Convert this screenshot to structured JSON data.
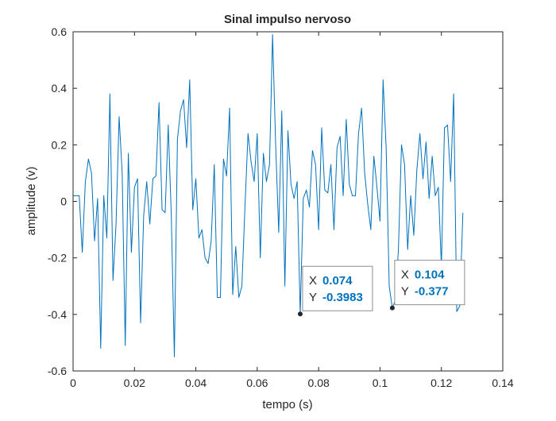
{
  "chart_data": {
    "type": "line",
    "title": "Sinal impulso nervoso",
    "xlabel": "tempo (s)",
    "ylabel": "amplitude (v)",
    "xlim": [
      0,
      0.14
    ],
    "ylim": [
      -0.6,
      0.6
    ],
    "xticks": [
      0,
      0.02,
      0.04,
      0.06,
      0.08,
      0.1,
      0.12,
      0.14
    ],
    "xtick_labels": [
      "0",
      "0.02",
      "0.04",
      "0.06",
      "0.08",
      "0.1",
      "0.12",
      "0.14"
    ],
    "yticks": [
      0.6,
      0.4,
      0.2,
      0,
      -0.2,
      -0.4,
      -0.6
    ],
    "ytick_labels": [
      "0.6",
      "0.4",
      "0.2",
      "0",
      "-0.2",
      "-0.4",
      "-0.6"
    ],
    "grid": false,
    "line_color": "#0072BD",
    "series": [
      {
        "x": [
          0,
          0.001,
          0.002,
          0.003,
          0.004,
          0.005,
          0.006,
          0.007,
          0.008,
          0.009,
          0.01,
          0.011,
          0.012,
          0.013,
          0.014,
          0.015,
          0.016,
          0.017,
          0.018,
          0.019,
          0.02,
          0.021,
          0.022,
          0.023,
          0.024,
          0.025,
          0.026,
          0.027,
          0.028,
          0.029,
          0.03,
          0.031,
          0.032,
          0.033,
          0.034,
          0.035,
          0.036,
          0.037,
          0.038,
          0.039,
          0.04,
          0.041,
          0.042,
          0.043,
          0.044,
          0.045,
          0.046,
          0.047,
          0.048,
          0.049,
          0.05,
          0.051,
          0.052,
          0.053,
          0.054,
          0.055,
          0.056,
          0.057,
          0.058,
          0.059,
          0.06,
          0.061,
          0.062,
          0.063,
          0.064,
          0.065,
          0.066,
          0.067,
          0.068,
          0.069,
          0.07,
          0.071,
          0.072,
          0.073,
          0.074,
          0.075,
          0.076,
          0.077,
          0.078,
          0.079,
          0.08,
          0.081,
          0.082,
          0.083,
          0.084,
          0.085,
          0.086,
          0.087,
          0.088,
          0.089,
          0.09,
          0.091,
          0.092,
          0.093,
          0.094,
          0.095,
          0.096,
          0.097,
          0.098,
          0.099,
          0.1,
          0.101,
          0.102,
          0.103,
          0.104,
          0.105,
          0.106,
          0.107,
          0.108,
          0.109,
          0.11,
          0.111,
          0.112,
          0.113,
          0.114,
          0.115,
          0.116,
          0.117,
          0.118,
          0.119,
          0.12,
          0.121,
          0.122,
          0.123,
          0.124,
          0.125,
          0.126,
          0.127
        ],
        "y": [
          0.02,
          0.02,
          0.02,
          -0.18,
          0.07,
          0.15,
          0.1,
          -0.14,
          0.01,
          -0.52,
          0.02,
          -0.13,
          0.38,
          -0.28,
          -0.08,
          0.3,
          0.1,
          -0.51,
          0.17,
          -0.18,
          0.05,
          0.08,
          -0.43,
          -0.05,
          0.07,
          -0.08,
          0.08,
          0.09,
          0.35,
          -0.03,
          -0.04,
          0.27,
          -0.05,
          -0.55,
          0.22,
          0.32,
          0.36,
          0.19,
          0.43,
          -0.03,
          0.08,
          -0.13,
          -0.1,
          -0.2,
          -0.22,
          -0.14,
          0.13,
          -0.34,
          -0.34,
          0.15,
          0.09,
          0.33,
          -0.33,
          -0.16,
          -0.34,
          -0.3,
          -0.02,
          0.24,
          0.14,
          0.07,
          0.24,
          -0.2,
          0.17,
          0.07,
          0.13,
          0.59,
          0.2,
          -0.11,
          0.32,
          -0.3,
          0.25,
          0.06,
          0.01,
          0.07,
          -0.3983,
          0.01,
          0.04,
          -0.02,
          0.18,
          0.13,
          -0.1,
          0.26,
          0.04,
          0.03,
          0.13,
          -0.1,
          0.19,
          0.23,
          0.02,
          0.29,
          0.06,
          0.02,
          0.02,
          0.24,
          0.33,
          0.1,
          -0.01,
          -0.1,
          0.16,
          0.05,
          -0.07,
          0.43,
          0.19,
          -0.3,
          -0.377,
          -0.35,
          -0.17,
          0.2,
          0.13,
          -0.17,
          0.02,
          -0.12,
          0.11,
          0.24,
          0.08,
          0.21,
          0.01,
          0.16,
          0.02,
          0.05,
          -0.23,
          0.26,
          0.27,
          0.07,
          0.38,
          -0.39,
          -0.37,
          -0.04
        ]
      }
    ],
    "datatips": [
      {
        "x": 0.074,
        "y": -0.3983,
        "x_label": "X",
        "y_label": "Y",
        "x_text": "0.074",
        "y_text": "-0.3983"
      },
      {
        "x": 0.104,
        "y": -0.377,
        "x_label": "X",
        "y_label": "Y",
        "x_text": "0.104",
        "y_text": "-0.377"
      }
    ]
  }
}
